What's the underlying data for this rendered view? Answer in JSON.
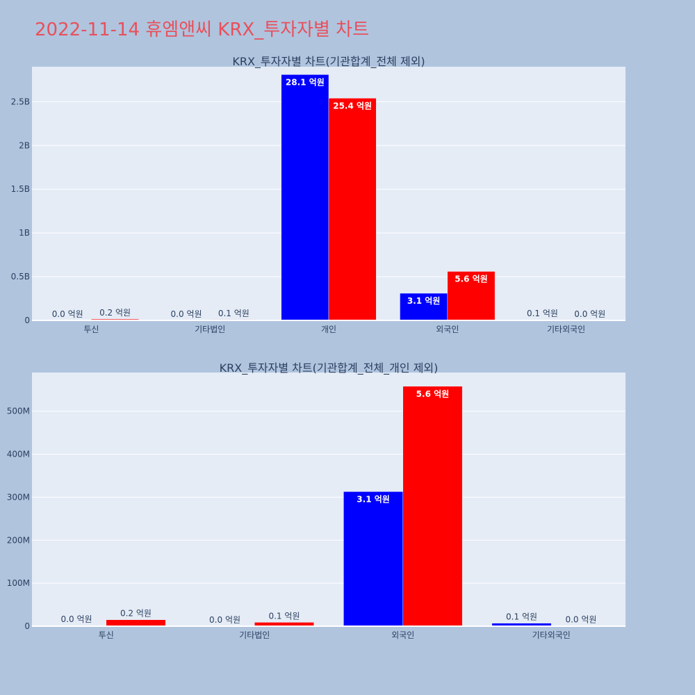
{
  "title": "2022-11-14 휴엠앤씨 KRX_투자자별 차트",
  "colors": {
    "series1": "#0000ff",
    "series2": "#ff0000",
    "title": "#e8505b",
    "background": "#b0c4de",
    "plot_bg": "#e5ecf6"
  },
  "chart_data": [
    {
      "type": "bar",
      "title": "KRX_투자자별 차트(기관합계_전체 제외)",
      "categories": [
        "투신",
        "기타법인",
        "개인",
        "외국인",
        "기타외국인"
      ],
      "series": [
        {
          "values": [
            0.0,
            0.0,
            2810000000,
            310000000,
            7000000
          ],
          "labels": [
            "0.0 억원",
            "0.0 억원",
            "28.1 억원",
            "3.1 억원",
            "0.1 억원"
          ],
          "color": "#0000ff"
        },
        {
          "values": [
            15000000,
            9000000,
            2540000000,
            560000000,
            1000000
          ],
          "labels": [
            "0.2 억원",
            "0.1 억원",
            "25.4 억원",
            "5.6 억원",
            "0.0 억원"
          ],
          "color": "#ff0000"
        }
      ],
      "ylim": [
        0,
        2900000000
      ],
      "yticks": [
        0,
        500000000,
        1000000000,
        1500000000,
        2000000000,
        2500000000
      ],
      "ytick_labels": [
        "0",
        "0.5B",
        "1B",
        "1.5B",
        "2B",
        "2.5B"
      ],
      "grid": true
    },
    {
      "type": "bar",
      "title": "KRX_투자자별 차트(기관합계_전체_개인 제외)",
      "categories": [
        "투신",
        "기타법인",
        "외국인",
        "기타외국인"
      ],
      "series": [
        {
          "values": [
            1500000,
            0.0,
            313000000,
            7000000
          ],
          "labels": [
            "0.0 억원",
            "0.0 억원",
            "3.1 억원",
            "0.1 억원"
          ],
          "color": "#0000ff"
        },
        {
          "values": [
            15000000,
            9000000,
            558000000,
            1000000
          ],
          "labels": [
            "0.2 억원",
            "0.1 억원",
            "5.6 억원",
            "0.0 억원"
          ],
          "color": "#ff0000"
        }
      ],
      "ylim": [
        0,
        590000000
      ],
      "yticks": [
        0,
        100000000,
        200000000,
        300000000,
        400000000,
        500000000
      ],
      "ytick_labels": [
        "0",
        "100M",
        "200M",
        "300M",
        "400M",
        "500M"
      ],
      "grid": true
    }
  ]
}
